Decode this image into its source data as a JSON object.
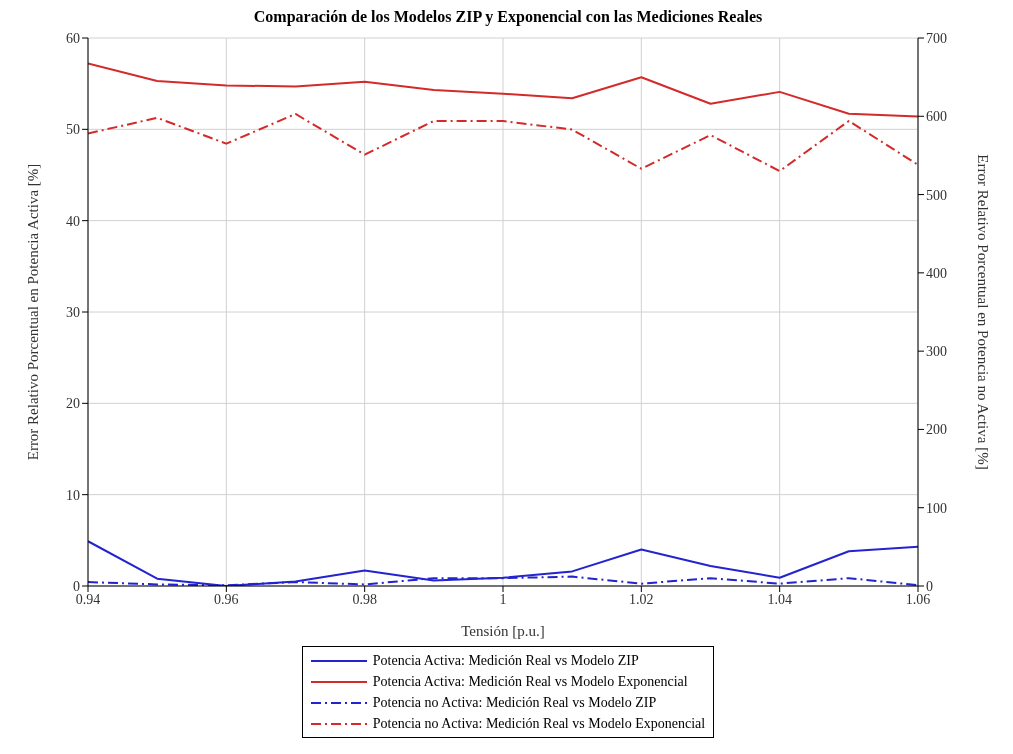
{
  "chart_data": {
    "type": "line",
    "title": "Comparación de los Modelos ZIP y Exponencial con las Mediciones Reales",
    "xlabel": "Tensión [p.u.]",
    "ylabel": "Error Relativo Porcentual en Potencia Activa [%]",
    "y2label": "Error Relativo Porcentual en Potencia no Activa [%]",
    "x": [
      0.94,
      0.95,
      0.96,
      0.97,
      0.98,
      0.99,
      1.0,
      1.01,
      1.02,
      1.03,
      1.04,
      1.05,
      1.06
    ],
    "xlim": [
      0.94,
      1.06
    ],
    "xticks": [
      0.94,
      0.96,
      0.98,
      1,
      1.02,
      1.04,
      1.06
    ],
    "ylim": [
      0,
      60
    ],
    "yticks": [
      0,
      10,
      20,
      30,
      40,
      50,
      60
    ],
    "y2lim": [
      0,
      700
    ],
    "y2ticks": [
      0,
      100,
      200,
      300,
      400,
      500,
      600,
      700
    ],
    "grid": true,
    "legend": "bottom",
    "marker": "none",
    "series": [
      {
        "name": "Potencia Activa: Medición Real vs Modelo ZIP",
        "color": "#2323d0",
        "line_style": "solid",
        "values": [
          4.9,
          0.8,
          0,
          0.5,
          1.7,
          0.6,
          0.9,
          1.6,
          4.0,
          2.2,
          0.9,
          3.8,
          4.3
        ]
      },
      {
        "name": "Potencia Activa: Medición Real vs Modelo Exponencial",
        "color": "#d42a2a",
        "line_style": "solid",
        "values": [
          57.2,
          55.3,
          54.8,
          54.7,
          55.2,
          54.3,
          53.9,
          53.4,
          55.7,
          52.8,
          54.1,
          51.7,
          51.4
        ]
      },
      {
        "name": "Potencia no Activa: Medición Real vs Modelo ZIP",
        "color": "#2323d0",
        "line_style": "dashed",
        "axis": "y2",
        "values": [
          5,
          2,
          1,
          5,
          2,
          10,
          10,
          12,
          3,
          10,
          3,
          10,
          1
        ]
      },
      {
        "name": "Potencia no Activa: Medición Real vs Modelo Exponencial",
        "color": "#d42a2a",
        "line_style": "dashed",
        "axis": "y2",
        "values": [
          578,
          598,
          565,
          603,
          551,
          594,
          594,
          583,
          533,
          576,
          530,
          594,
          538
        ]
      }
    ]
  }
}
